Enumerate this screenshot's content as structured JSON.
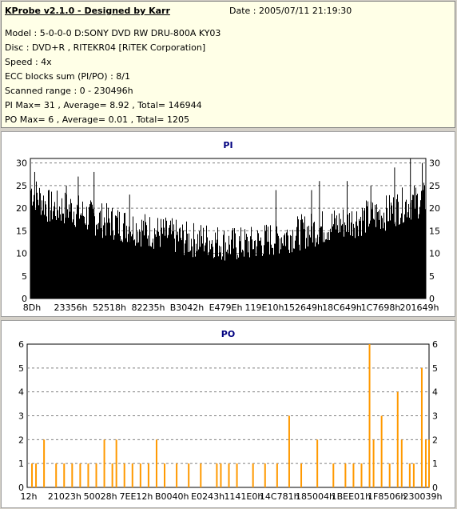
{
  "info": {
    "title": "KProbe v2.1.0 - Designed by Karr",
    "date": "Date : 2005/07/11 21:19:30",
    "lines": [
      "Model : 5-0-0-0 D:SONY    DVD RW DRU-800A  KY03",
      "Disc : DVD+R , RITEKR04 [RiTEK Corporation]",
      "Speed : 4x",
      "ECC blocks sum (PI/PO) : 8/1",
      "Scanned range : 0 - 230496h",
      "PI Max= 31 , Average= 8.92 , Total= 146944",
      "PO Max= 6 , Average= 0.01 , Total= 1205"
    ]
  },
  "colors": {
    "pi_bar": "#000000",
    "po_bar": "#ff9900",
    "title": "#000080",
    "grid": "#808080"
  },
  "chart_data": [
    {
      "type": "bar",
      "title": "PI",
      "ylim": [
        0,
        31
      ],
      "yticks": [
        0,
        5,
        10,
        15,
        20,
        25,
        30
      ],
      "xticks": [
        "8Dh",
        "23356h",
        "52518h",
        "82235h",
        "B3042h",
        "E479Eh",
        "119E10h",
        "152649h",
        "18C649h",
        "1C7698h",
        "201649h"
      ],
      "grid": true,
      "x_range": [
        0,
        230496
      ],
      "profile": [
        [
          0,
          24
        ],
        [
          5,
          20
        ],
        [
          10,
          20
        ],
        [
          15,
          18
        ],
        [
          20,
          17
        ],
        [
          25,
          16
        ],
        [
          30,
          15
        ],
        [
          35,
          14
        ],
        [
          40,
          13
        ],
        [
          45,
          13
        ],
        [
          50,
          12
        ],
        [
          55,
          12
        ],
        [
          60,
          13
        ],
        [
          65,
          14
        ],
        [
          70,
          15
        ],
        [
          75,
          16
        ],
        [
          80,
          17
        ],
        [
          85,
          18
        ],
        [
          90,
          19
        ],
        [
          95,
          21
        ],
        [
          100,
          22
        ]
      ],
      "spikes": [
        [
          1,
          28
        ],
        [
          9,
          25
        ],
        [
          12,
          27
        ],
        [
          16,
          28
        ],
        [
          25,
          23
        ],
        [
          62,
          24
        ],
        [
          71,
          24
        ],
        [
          73,
          26
        ],
        [
          80,
          26
        ],
        [
          86,
          25
        ],
        [
          92,
          29
        ],
        [
          96,
          31
        ],
        [
          99,
          30
        ]
      ]
    },
    {
      "type": "bar",
      "title": "PO",
      "ylim": [
        0,
        6
      ],
      "yticks": [
        0,
        1,
        2,
        3,
        4,
        5,
        6
      ],
      "xticks": [
        "12h",
        "21023h",
        "50028h",
        "7EE12h",
        "B0040h",
        "E0243h",
        "1141E0h",
        "14C781h",
        "185004h",
        "1BEE01h",
        "1F8506h",
        "230039h"
      ],
      "grid": true,
      "x_range": [
        0,
        230496
      ],
      "spikes": [
        [
          1,
          1
        ],
        [
          2,
          1
        ],
        [
          4,
          2
        ],
        [
          7,
          1
        ],
        [
          9,
          1
        ],
        [
          11,
          1
        ],
        [
          13,
          1
        ],
        [
          15,
          1
        ],
        [
          17,
          1
        ],
        [
          19,
          2
        ],
        [
          21,
          1
        ],
        [
          22,
          2
        ],
        [
          24,
          1
        ],
        [
          26,
          1
        ],
        [
          28,
          1
        ],
        [
          30,
          1
        ],
        [
          32,
          2
        ],
        [
          34,
          1
        ],
        [
          37,
          1
        ],
        [
          40,
          1
        ],
        [
          43,
          1
        ],
        [
          47,
          1
        ],
        [
          48,
          1
        ],
        [
          50,
          1
        ],
        [
          52,
          1
        ],
        [
          56,
          1
        ],
        [
          59,
          1
        ],
        [
          62,
          1
        ],
        [
          65,
          3
        ],
        [
          68,
          1
        ],
        [
          72,
          2
        ],
        [
          76,
          1
        ],
        [
          79,
          1
        ],
        [
          81,
          1
        ],
        [
          83,
          1
        ],
        [
          85,
          6
        ],
        [
          86,
          2
        ],
        [
          88,
          3
        ],
        [
          90,
          1
        ],
        [
          92,
          4
        ],
        [
          93,
          2
        ],
        [
          95,
          1
        ],
        [
          96,
          1
        ],
        [
          98,
          5
        ],
        [
          99,
          2
        ],
        [
          100,
          2
        ]
      ]
    }
  ]
}
